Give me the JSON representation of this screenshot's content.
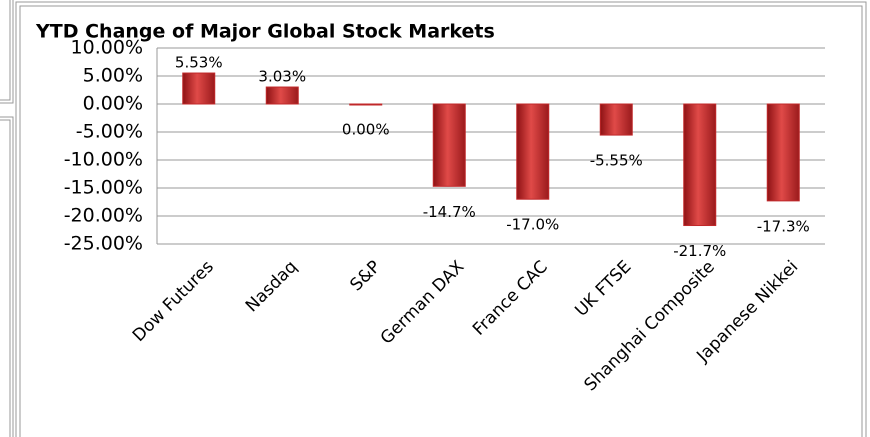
{
  "chart_data": {
    "type": "bar",
    "title": "YTD Change of Major Global Stock Markets",
    "categories": [
      "Dow Futures",
      "Nasdaq",
      "S&P",
      "German DAX",
      "France CAC",
      "UK FTSE",
      "Shanghai Composite",
      "Japanese Nikkei"
    ],
    "values": [
      5.53,
      3.03,
      0.0,
      -14.7,
      -17.0,
      -5.55,
      -21.7,
      -17.3
    ],
    "value_labels": [
      "5.53%",
      "3.03%",
      "0.00%",
      "-14.7%",
      "-17.0%",
      "-5.55%",
      "-21.7%",
      "-17.3%"
    ],
    "color": "#c0282a",
    "ylim": [
      -25,
      10
    ],
    "yticks": [
      {
        "value": 10,
        "label": "10.00%"
      },
      {
        "value": 5,
        "label": "5.00%"
      },
      {
        "value": 0,
        "label": "0.00%"
      },
      {
        "value": -5,
        "label": "-5.00%"
      },
      {
        "value": -10,
        "label": "-10.00%"
      },
      {
        "value": -15,
        "label": "-15.00%"
      },
      {
        "value": -20,
        "label": "-20.00%"
      },
      {
        "value": -25,
        "label": "-25.00%"
      }
    ],
    "grid": true
  }
}
